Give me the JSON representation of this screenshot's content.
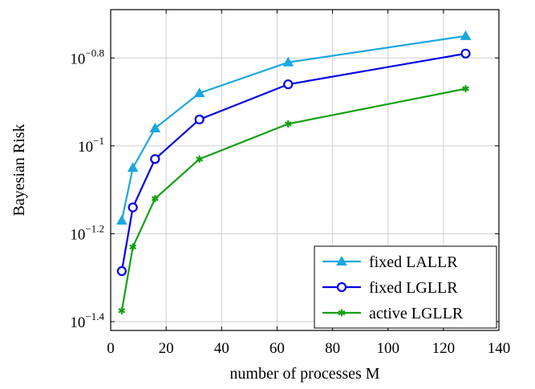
{
  "chart_data": {
    "type": "line",
    "xlabel": "number of processes M",
    "ylabel": "Bayesian Risk",
    "xlim": [
      0,
      140
    ],
    "ylim_log10": [
      -1.42,
      -0.69
    ],
    "yscale": "log",
    "grid": true,
    "legend_position": "bottom-right",
    "x_ticks": [
      0,
      20,
      40,
      60,
      80,
      100,
      120,
      140
    ],
    "y_ticks": [
      {
        "base": "10",
        "exponent": "−1.4",
        "log10": -1.4
      },
      {
        "base": "10",
        "exponent": "−1.2",
        "log10": -1.2
      },
      {
        "base": "10",
        "exponent": "−1",
        "log10": -1.0
      },
      {
        "base": "10",
        "exponent": "−0.8",
        "log10": -0.8
      }
    ],
    "series": [
      {
        "name": "fixed LALLR",
        "color": "#1ba7e0",
        "marker": "triangle",
        "x": [
          4,
          8,
          16,
          32,
          64,
          128
        ],
        "log10_y": [
          -1.17,
          -1.05,
          -0.96,
          -0.88,
          -0.81,
          -0.75
        ]
      },
      {
        "name": "fixed LGLLR",
        "color": "#0000e6",
        "marker": "circle",
        "x": [
          4,
          8,
          16,
          32,
          64,
          128
        ],
        "log10_y": [
          -1.285,
          -1.14,
          -1.03,
          -0.94,
          -0.86,
          -0.79
        ]
      },
      {
        "name": "active LGLLR",
        "color": "#15a015",
        "marker": "star",
        "x": [
          4,
          8,
          16,
          32,
          64,
          128
        ],
        "log10_y": [
          -1.375,
          -1.23,
          -1.12,
          -1.03,
          -0.95,
          -0.87
        ]
      }
    ]
  }
}
